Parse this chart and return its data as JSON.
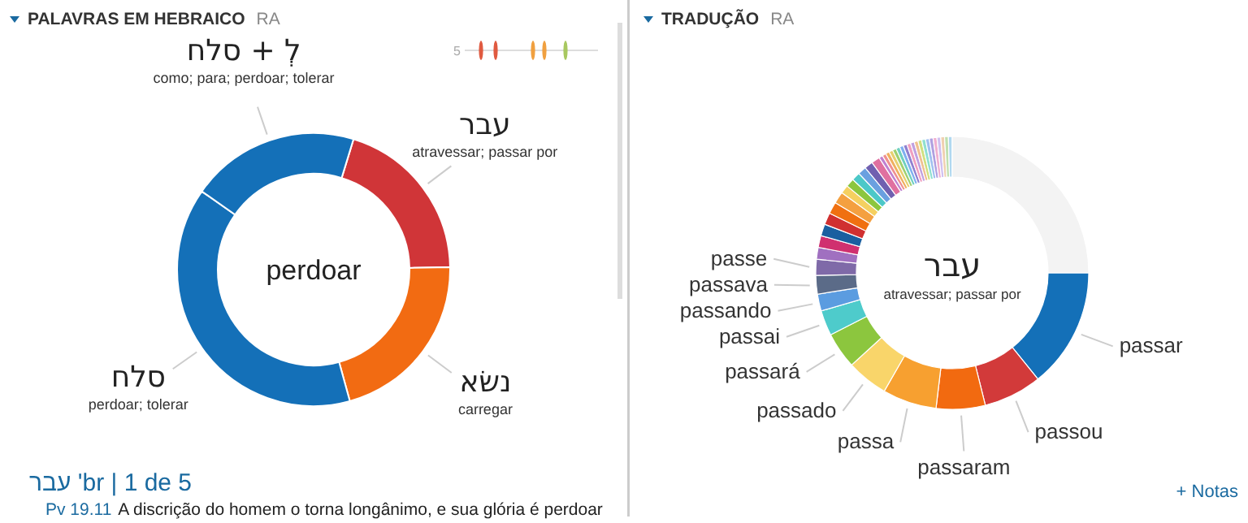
{
  "chart_data": [
    {
      "type": "donut",
      "title": "PALAVRAS EM HEBRAICO",
      "subtitle": "RA",
      "categories": [
        "עבר",
        "נשׂא",
        "סלח",
        "לְ + סלח"
      ],
      "values": [
        20,
        21,
        39,
        20
      ],
      "colors": [
        "#d03538",
        "#f26b12",
        "#1470b8",
        "#1470b8"
      ],
      "annotations": [
        "atravessar; passar por",
        "carregar",
        "perdoar; tolerar",
        "como; para; perdoar; tolerar",
        "perdoar",
        "5",
        "עבר 'br | 1 de 5",
        "Pv 19.11",
        "A discrição do homem o torna longânimo, e sua glória é perdoar"
      ]
    },
    {
      "type": "donut",
      "title": "TRADUÇÃO",
      "subtitle": "RA",
      "categories": [
        "passar",
        "passou",
        "passaram",
        "passa",
        "passado",
        "passará",
        "passai",
        "passando",
        "passava",
        "passe",
        null,
        null,
        null,
        null,
        null,
        null,
        null,
        null,
        null,
        null,
        null,
        null,
        null,
        null,
        null,
        null,
        null,
        null,
        null,
        null,
        null,
        null,
        null,
        null,
        null,
        null,
        null,
        null,
        null,
        null,
        null,
        null,
        null
      ],
      "values": [
        14.2,
        6.9,
        5.8,
        6.4,
        4.9,
        4.3,
        3.0,
        2.0,
        2.2,
        1.9,
        1.4,
        1.4,
        1.4,
        1.4,
        1.4,
        1.4,
        1.0,
        1.0,
        1.0,
        1.0,
        1.0,
        1.0,
        0.45,
        0.45,
        0.45,
        0.45,
        0.45,
        0.45,
        0.45,
        0.45,
        0.45,
        0.45,
        0.45,
        0.45,
        0.45,
        0.45,
        0.45,
        0.45,
        0.45,
        0.45,
        0.45,
        0.45,
        25
      ],
      "colors": [
        "#1470b8",
        "#d23a3a",
        "#f26a10",
        "#f7a030",
        "#f9d56a",
        "#8cc63e",
        "#4ecbcb",
        "#5b9ce0",
        "#5b6b88",
        "#7f6aa8",
        "#a070c0",
        "#d0306f",
        "#1a5fa0",
        "#d03030",
        "#f07010",
        "#f4a040",
        "#f5d060",
        "#8cc63e",
        "#4cc8c8",
        "#6aa0e0",
        "#7060b0",
        "#e070a0",
        "#c080d0",
        "#f09090",
        "#f0b060",
        "#e8d070",
        "#a0d070",
        "#70d0c0",
        "#80b0f0",
        "#9080d0",
        "#f0a0c0",
        "#c0a0e0",
        "#f0c090",
        "#d0e080",
        "#90e0d0",
        "#a0c0f0",
        "#b0a0e0",
        "#f0b0d0",
        "#d0c0f0",
        "#f0d0b0",
        "#c0e0b0",
        "#b0d8f0",
        "#f3f3f3"
      ],
      "annotations": [
        "עבר",
        "atravessar; passar por",
        "+ Notas"
      ]
    }
  ]
}
